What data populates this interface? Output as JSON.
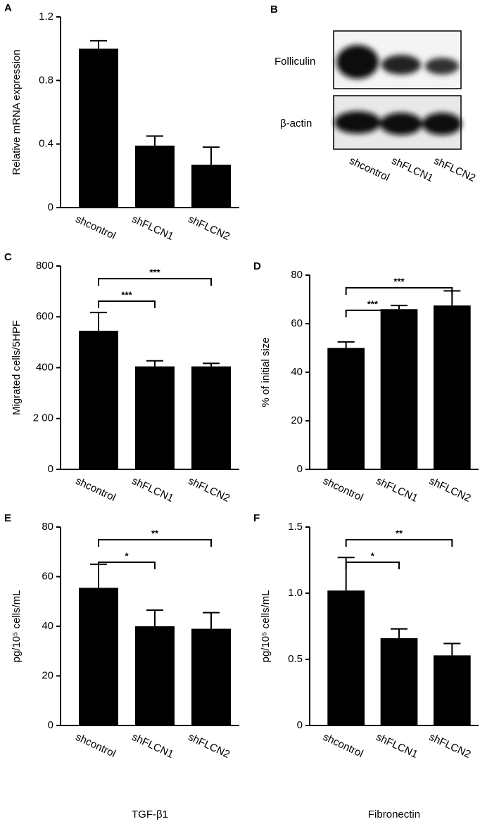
{
  "chart_data": [
    {
      "type": "bar",
      "panel": "A",
      "ylabel": "Relative mRNA expression",
      "categories": [
        "shcontrol",
        "shFLCN1",
        "shFLCN2"
      ],
      "values": [
        1.0,
        0.39,
        0.27
      ],
      "errors": [
        0.05,
        0.06,
        0.11
      ],
      "color": "#000000",
      "ylim": [
        0,
        1.2
      ],
      "yticks": [
        0,
        0.4,
        0.8,
        1.2
      ],
      "comparisons": []
    },
    {
      "type": "bar",
      "panel": "C",
      "ylabel": "Migrated cells/5HPF",
      "categories": [
        "shcontrol",
        "shFLCN1",
        "shFLCN2"
      ],
      "values": [
        545,
        405,
        405
      ],
      "errors": [
        72,
        22,
        12
      ],
      "color": "#000000",
      "ylim": [
        0,
        800
      ],
      "yticks": [
        0,
        {
          "value": 200,
          "label": "2 00"
        },
        400,
        600,
        800
      ],
      "comparisons": [
        {
          "from": 0,
          "to": 2,
          "label": "***"
        },
        {
          "from": 0,
          "to": 1,
          "label": "***"
        }
      ]
    },
    {
      "type": "bar",
      "panel": "D",
      "ylabel": "% of initial size",
      "categories": [
        "shcontrol",
        "shFLCN1",
        "shFLCN2"
      ],
      "values": [
        50,
        66,
        67.5
      ],
      "errors": [
        2.5,
        1.5,
        6
      ],
      "color": "#000000",
      "ylim": [
        0,
        80
      ],
      "yticks": [
        0,
        20,
        40,
        60,
        80
      ],
      "comparisons": [
        {
          "from": 0,
          "to": 2,
          "label": "***"
        },
        {
          "from": 0,
          "to": 1,
          "label": "***"
        }
      ]
    },
    {
      "type": "bar",
      "panel": "E",
      "ylabel": "pg/10⁵ cells/mL",
      "xlabel": "TGF-β1",
      "categories": [
        "shcontrol",
        "shFLCN1",
        "shFLCN2"
      ],
      "values": [
        55.5,
        40,
        39
      ],
      "errors": [
        9.5,
        6.5,
        6.5
      ],
      "color": "#000000",
      "ylim": [
        0,
        80
      ],
      "yticks": [
        0,
        20,
        40,
        60,
        80
      ],
      "comparisons": [
        {
          "from": 0,
          "to": 2,
          "label": "**"
        },
        {
          "from": 0,
          "to": 1,
          "label": "*"
        }
      ]
    },
    {
      "type": "bar",
      "panel": "F",
      "ylabel": "pg/10⁵ cells/mL",
      "xlabel": "Fibronectin",
      "categories": [
        "shcontrol",
        "shFLCN1",
        "shFLCN2"
      ],
      "values": [
        1.02,
        0.66,
        0.53
      ],
      "errors": [
        0.25,
        0.07,
        0.09
      ],
      "color": "#000000",
      "ylim": [
        0,
        1.5
      ],
      "yticks": [
        0,
        0.5,
        {
          "value": 1.0,
          "label": "1.0"
        },
        1.5
      ],
      "comparisons": [
        {
          "from": 0,
          "to": 2,
          "label": "**"
        },
        {
          "from": 0,
          "to": 1,
          "label": "*"
        }
      ]
    }
  ],
  "blot": {
    "panel": "B",
    "rows": [
      "Folliculin",
      "β-actin"
    ],
    "lanes": [
      "shcontrol",
      "shFLCN1",
      "shFLCN2"
    ]
  }
}
